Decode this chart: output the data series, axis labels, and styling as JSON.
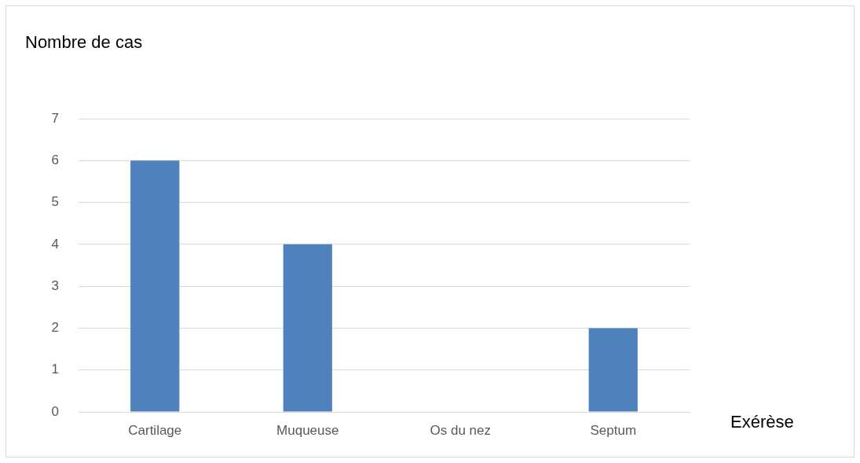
{
  "chart_data": {
    "type": "bar",
    "ylabel": "Nombre de cas",
    "xlabel": "Exérèse",
    "categories": [
      "Cartilage",
      "Muqueuse",
      "Os du nez",
      "Septum"
    ],
    "values": [
      6,
      4,
      0,
      2
    ],
    "color": "#4f81bd",
    "ylim": [
      0,
      7
    ],
    "yticks": [
      0,
      1,
      2,
      3,
      4,
      5,
      6,
      7
    ],
    "grid": "y",
    "legend": false
  }
}
